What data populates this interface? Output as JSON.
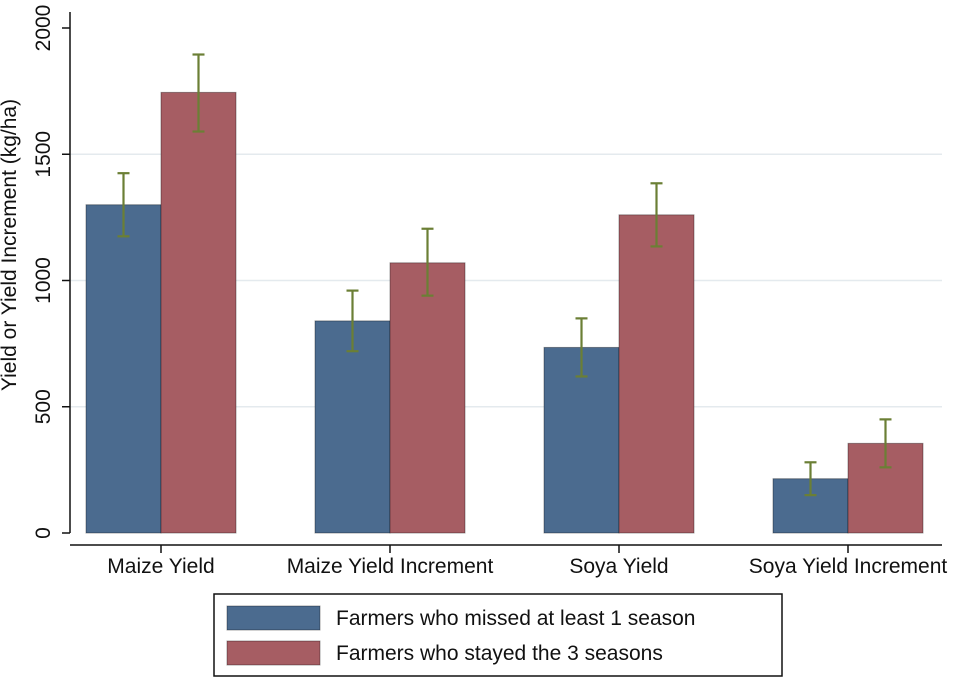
{
  "chart_data": {
    "type": "bar",
    "title": "",
    "xlabel": "",
    "ylabel": "Yield or Yield Increment (kg/ha)",
    "ylim": [
      0,
      2000
    ],
    "yticks": [
      0,
      500,
      1000,
      1500,
      2000
    ],
    "grid": true,
    "legend_position": "bottom-center",
    "categories": [
      "Maize Yield",
      "Maize Yield Increment",
      "Soya Yield",
      "Soya Yield Increment"
    ],
    "series": [
      {
        "name": "Farmers who missed at least 1 season",
        "color": "#4b6b8f",
        "values": [
          1300,
          840,
          735,
          215
        ],
        "ci_low": [
          1175,
          720,
          620,
          150
        ],
        "ci_high": [
          1425,
          960,
          850,
          280
        ]
      },
      {
        "name": "Farmers who stayed the 3 seasons",
        "color": "#a65d63",
        "values": [
          1745,
          1070,
          1260,
          355
        ],
        "ci_low": [
          1590,
          940,
          1135,
          260
        ],
        "ci_high": [
          1895,
          1205,
          1385,
          450
        ]
      }
    ],
    "errorbar_color": "#6b7f35"
  }
}
